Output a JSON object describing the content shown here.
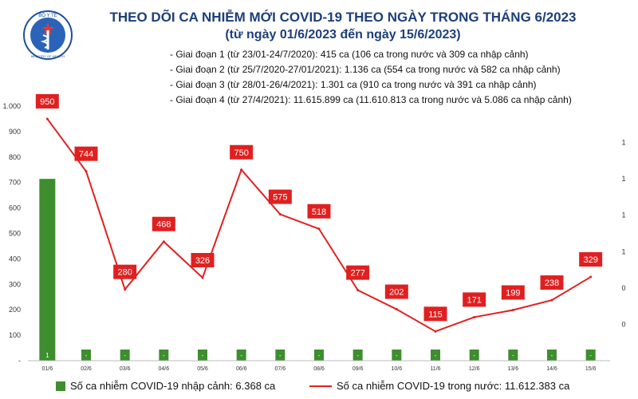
{
  "header": {
    "title": "THEO DÕI CA NHIỄM MỚI COVID-19 THEO NGÀY TRONG THÁNG 6/2023",
    "subtitle": "(từ ngày 01/6/2023 đến ngày 15/6/2023)",
    "logo_text_top": "BỘ Y TẾ",
    "logo_text_bottom": "MINISTRY OF HEALTH"
  },
  "phases": [
    "- Giai đoạn 1 (từ 23/01-24/7/2020): 415 ca (106 ca trong nước và 309 ca nhập cảnh)",
    "- Giai đoạn 2 (từ 25/7/2020-27/01/2021): 1.136 ca (554 ca trong nước và 582 ca nhập cảnh)",
    "- Giai đoạn 3 (từ 28/01-26/4/2021): 1.301 ca (910 ca trong nước và 391 ca nhập cảnh)",
    "- Giai đoạn 4 (từ 27/4/2021): 11.615.899 ca (11.610.813 ca trong nước và 5.086 ca nhập cảnh)"
  ],
  "legend": {
    "bar_label": "Số ca nhiễm COVID-19 nhập cảnh: 6.368 ca",
    "line_label": "Số ca nhiễm COVID-19 trong nước: 11.612.383 ca"
  },
  "colors": {
    "bar": "#3e8e2f",
    "line": "#e02020",
    "title": "#1d3f7a"
  },
  "chart_data": {
    "type": "bar+line",
    "categories": [
      "01/6",
      "02/6",
      "03/6",
      "04/6",
      "05/6",
      "06/6",
      "07/6",
      "08/6",
      "09/6",
      "10/6",
      "11/6",
      "12/6",
      "13/6",
      "14/6",
      "15/6"
    ],
    "left_axis": {
      "range": [
        0,
        1000
      ],
      "ticks": [
        0,
        100,
        200,
        300,
        400,
        500,
        600,
        700,
        800,
        900,
        1000
      ],
      "tick_labels": [
        "-",
        "100",
        "200",
        "300",
        "400",
        "500",
        "600",
        "700",
        "800",
        "900",
        "1.000"
      ]
    },
    "right_axis": {
      "range": [
        0,
        1.4
      ],
      "tick_labels": [
        "0",
        "0",
        "1",
        "1",
        "1",
        "1"
      ],
      "tick_values": [
        0.2,
        0.4,
        0.6,
        0.8,
        1.0,
        1.2
      ]
    },
    "series": [
      {
        "type": "bar",
        "axis": "right",
        "values": [
          1,
          0,
          0,
          0,
          0,
          0,
          0,
          0,
          0,
          0,
          0,
          0,
          0,
          0,
          0
        ],
        "labels": [
          "1",
          "-",
          "-",
          "-",
          "-",
          "-",
          "-",
          "-",
          "-",
          "-",
          "-",
          "-",
          "-",
          "-",
          "-"
        ]
      },
      {
        "type": "line",
        "axis": "left",
        "values": [
          950,
          744,
          280,
          468,
          326,
          750,
          575,
          518,
          277,
          202,
          115,
          171,
          199,
          238,
          329
        ],
        "labels": [
          "950",
          "744",
          "280",
          "468",
          "326",
          "750",
          "575",
          "518",
          "277",
          "202",
          "115",
          "171",
          "199",
          "238",
          "329"
        ]
      }
    ],
    "grid": false
  }
}
